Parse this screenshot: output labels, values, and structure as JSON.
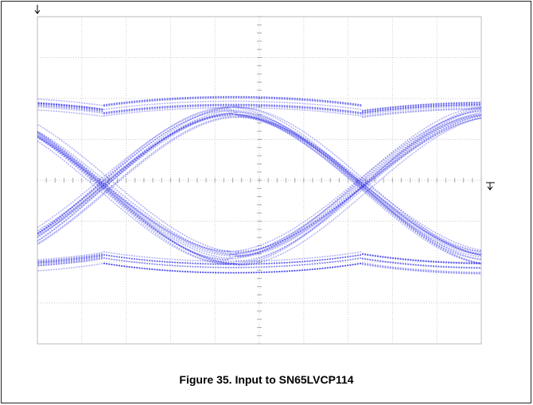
{
  "figure": {
    "caption": "Figure 35. Input to SN65LVCP114"
  }
}
